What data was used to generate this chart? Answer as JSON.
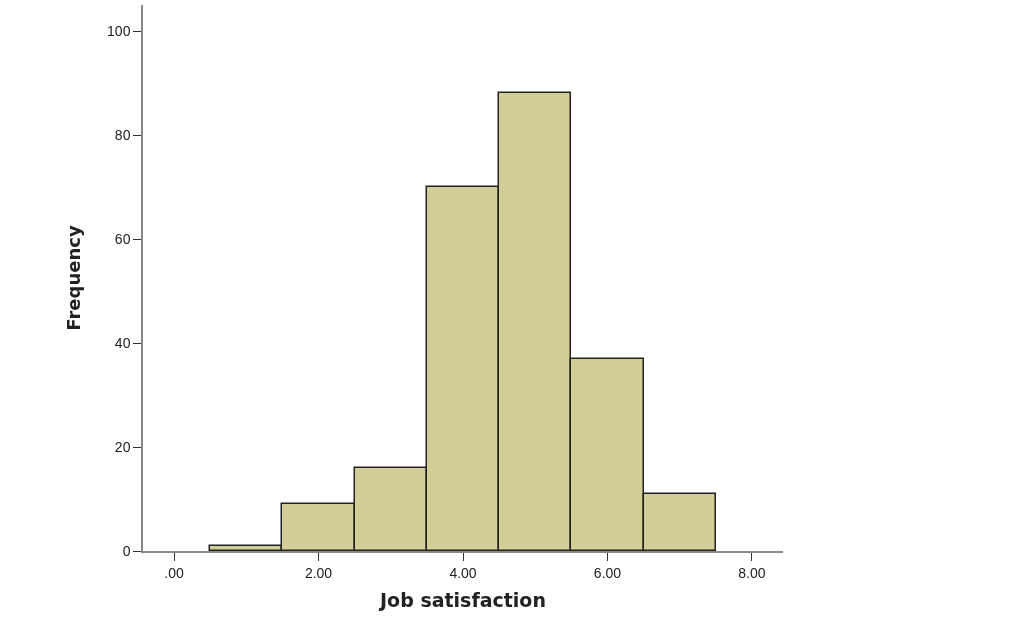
{
  "chart_data": {
    "type": "histogram",
    "xlabel": "Job satisfaction",
    "ylabel": "Frequency",
    "bins": [
      0.5,
      1.5,
      2.5,
      3.5,
      4.5,
      5.5,
      6.5,
      7.5
    ],
    "values": [
      1,
      9,
      16,
      70,
      88,
      37,
      11
    ],
    "color": "#d3ce97",
    "xlim": [
      -0.43,
      8.43
    ],
    "xticks": [
      {
        "value": 0,
        "label": ".00"
      },
      {
        "value": 2,
        "label": "2.00"
      },
      {
        "value": 4,
        "label": "4.00"
      },
      {
        "value": 6,
        "label": "6.00"
      },
      {
        "value": 8,
        "label": "8.00"
      }
    ],
    "ylim": [
      0,
      105
    ],
    "yticks": [
      0,
      20,
      40,
      60,
      80,
      100
    ],
    "grid": false
  }
}
